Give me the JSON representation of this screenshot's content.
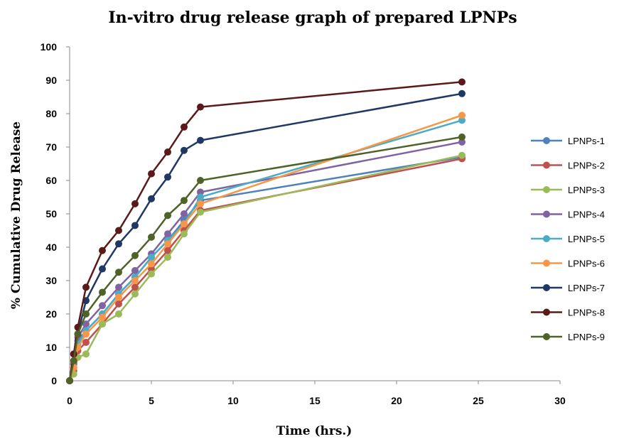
{
  "chart_data": {
    "type": "line",
    "title": "In-vitro drug release graph of prepared LPNPs",
    "xlabel": "Time (hrs.)",
    "ylabel": "% Cumulative Drug Release",
    "xlim": [
      0,
      30
    ],
    "ylim": [
      0,
      100
    ],
    "xticks": [
      0,
      5,
      10,
      15,
      20,
      25,
      30
    ],
    "yticks": [
      0,
      10,
      20,
      30,
      40,
      50,
      60,
      70,
      80,
      90,
      100
    ],
    "grid": false,
    "legend_position": "right",
    "x": [
      0,
      0.25,
      0.5,
      1,
      2,
      3,
      4,
      5,
      6,
      7,
      8,
      24
    ],
    "series": [
      {
        "name": "LPNPs-1",
        "color": "#4F81BD",
        "values": [
          0,
          5,
          12,
          15,
          20,
          26,
          31,
          37,
          42,
          48,
          54,
          67
        ]
      },
      {
        "name": "LPNPs-2",
        "color": "#C0504D",
        "values": [
          0,
          3,
          9,
          11.5,
          17,
          23,
          28,
          33.5,
          39,
          45,
          51,
          66.5
        ]
      },
      {
        "name": "LPNPs-3",
        "color": "#9BBB59",
        "values": [
          0,
          2,
          7,
          8,
          17,
          20,
          26,
          32,
          37,
          44,
          50.5,
          67.5
        ]
      },
      {
        "name": "LPNPs-4",
        "color": "#8064A2",
        "values": [
          0,
          5,
          13,
          17,
          22.5,
          28,
          33,
          38,
          44,
          50,
          56.5,
          71.5
        ]
      },
      {
        "name": "LPNPs-5",
        "color": "#4BACC6",
        "values": [
          0,
          4,
          11,
          15,
          20,
          26,
          31,
          37,
          42,
          47,
          55,
          78
        ]
      },
      {
        "name": "LPNPs-6",
        "color": "#F79646",
        "values": [
          0,
          4,
          10,
          14,
          19,
          25,
          30,
          35,
          41,
          47,
          53,
          79.5
        ]
      },
      {
        "name": "LPNPs-7",
        "color": "#1F3864",
        "values": [
          0,
          8,
          14,
          24,
          33.5,
          41,
          46.5,
          54.5,
          61,
          69,
          72,
          86
        ]
      },
      {
        "name": "LPNPs-8",
        "color": "#5B1A1A",
        "values": [
          0,
          8,
          16,
          28,
          39,
          45,
          53,
          62,
          68.5,
          76,
          82,
          89.5
        ]
      },
      {
        "name": "LPNPs-9",
        "color": "#4F6228",
        "values": [
          0,
          6,
          14,
          20,
          26.5,
          32.5,
          37.5,
          43,
          49.5,
          54,
          60,
          73
        ]
      }
    ]
  }
}
